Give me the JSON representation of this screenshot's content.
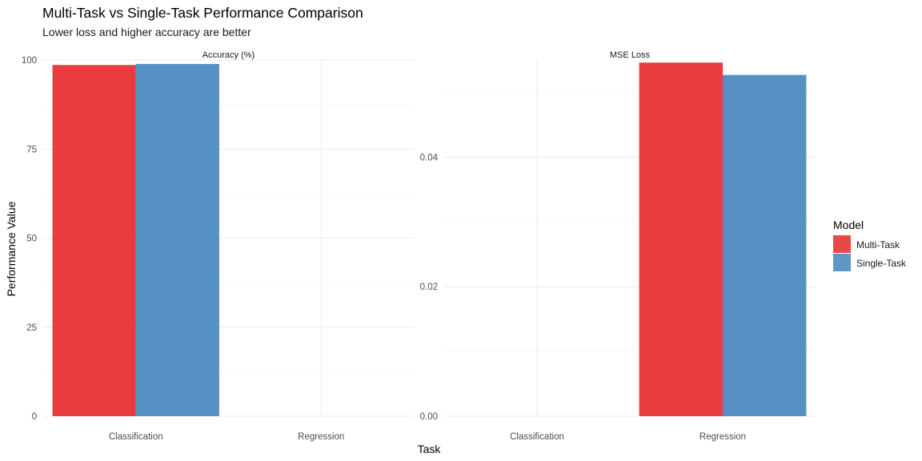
{
  "title": "Multi-Task vs Single-Task Performance Comparison",
  "subtitle": "Lower loss and higher accuracy are better",
  "chart_data": {
    "type": "bar",
    "ylabel": "Performance Value",
    "xlabel": "Task",
    "legend": {
      "title": "Model",
      "placement": "right",
      "entries": [
        {
          "name": "Multi-Task",
          "color": "#E41A1C"
        },
        {
          "name": "Single-Task",
          "color": "#377EB8"
        }
      ]
    },
    "categories": [
      "Classification",
      "Regression"
    ],
    "grid": true,
    "panels": [
      {
        "title": "Accuracy (%)",
        "ylim": [
          0,
          100
        ],
        "yticks": [
          0,
          25,
          50,
          75,
          100
        ],
        "ytick_labels": [
          "0",
          "25",
          "50",
          "75",
          "100"
        ],
        "series": [
          {
            "name": "Multi-Task",
            "values": [
              98.6,
              null
            ]
          },
          {
            "name": "Single-Task",
            "values": [
              98.9,
              null
            ]
          }
        ]
      },
      {
        "title": "MSE Loss",
        "ylim": [
          0,
          0.055
        ],
        "yticks": [
          0,
          0.02,
          0.04
        ],
        "ytick_labels": [
          "0.00",
          "0.02",
          "0.04"
        ],
        "series": [
          {
            "name": "Multi-Task",
            "values": [
              null,
              0.0546
            ]
          },
          {
            "name": "Single-Task",
            "values": [
              null,
              0.0527
            ]
          }
        ]
      }
    ]
  }
}
